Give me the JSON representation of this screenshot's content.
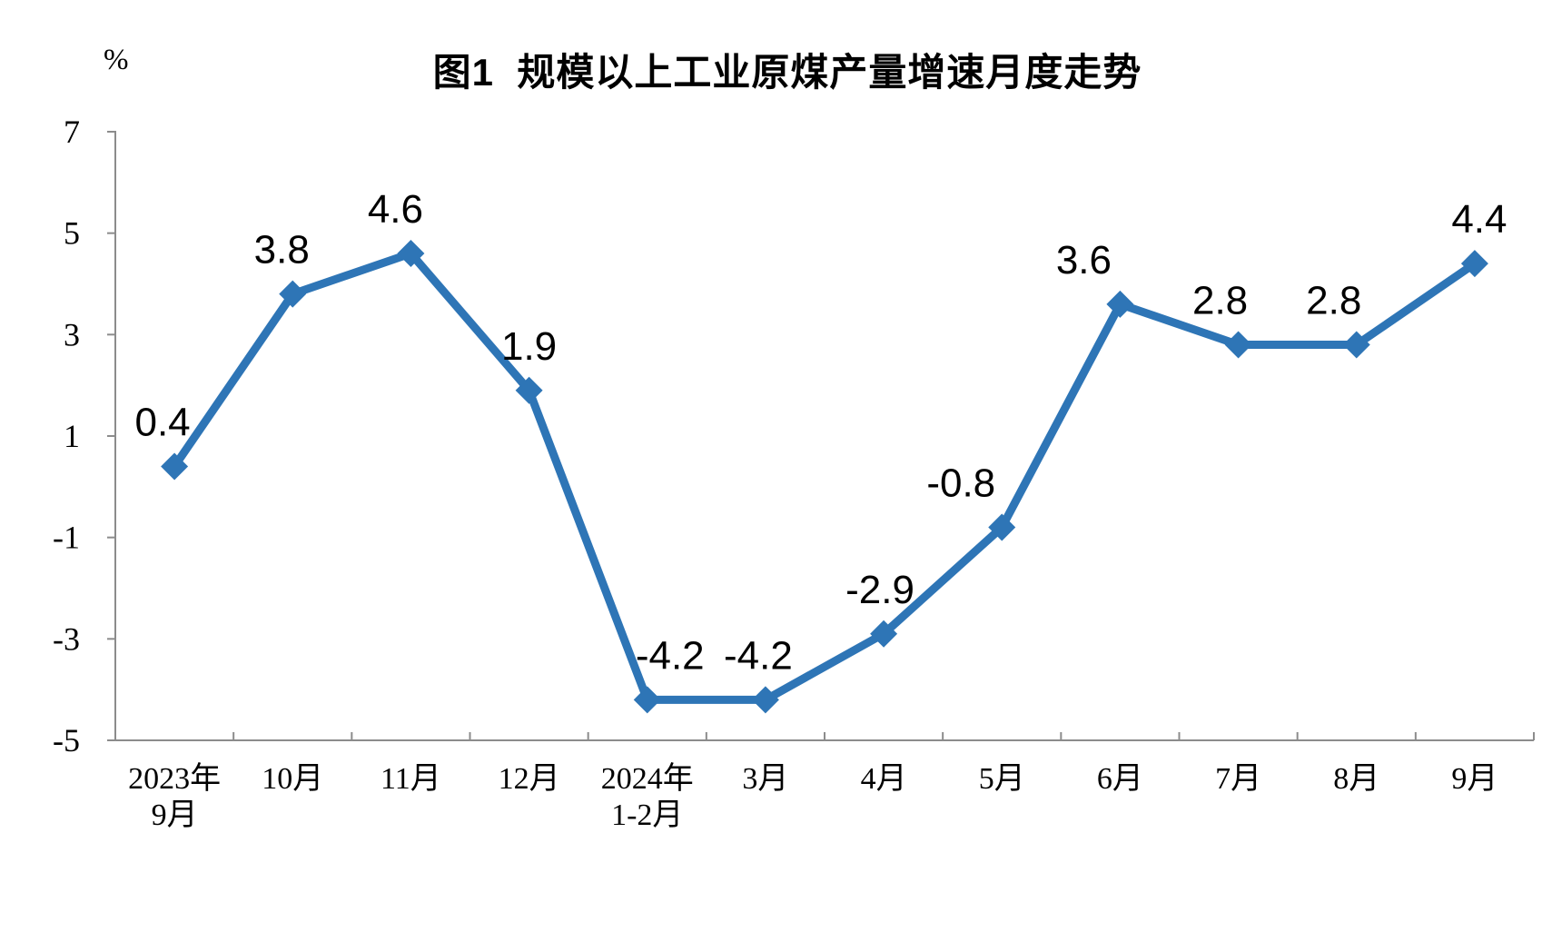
{
  "chart_data": {
    "type": "line",
    "title": "图1  规模以上工业原煤产量增速月度走势",
    "unit_label": "%",
    "categories": [
      "2023年\n9月",
      "10月",
      "11月",
      "12月",
      "2024年\n1-2月",
      "3月",
      "4月",
      "5月",
      "6月",
      "7月",
      "8月",
      "9月"
    ],
    "values": [
      0.4,
      3.8,
      4.6,
      1.9,
      -4.2,
      -4.2,
      -2.9,
      -0.8,
      3.6,
      2.8,
      2.8,
      4.4
    ],
    "data_labels": [
      "0.4",
      "3.8",
      "4.6",
      "1.9",
      "-4.2",
      "-4.2",
      "-2.9",
      "-0.8",
      "3.6",
      "2.8",
      "2.8",
      "4.4"
    ],
    "yticks": [
      7,
      5,
      3,
      1,
      -1,
      -3,
      -5
    ],
    "ylim": [
      -5,
      7
    ],
    "grid": false,
    "legend": "none",
    "marker": "diamond",
    "colors": {
      "line": "#2E75B6",
      "axis": "#8C8C8C",
      "text": "#000000"
    },
    "label_offsets_x": [
      -13,
      -12,
      -17,
      0,
      25,
      -8,
      -4,
      -45,
      -40,
      -20,
      -25,
      5
    ]
  }
}
